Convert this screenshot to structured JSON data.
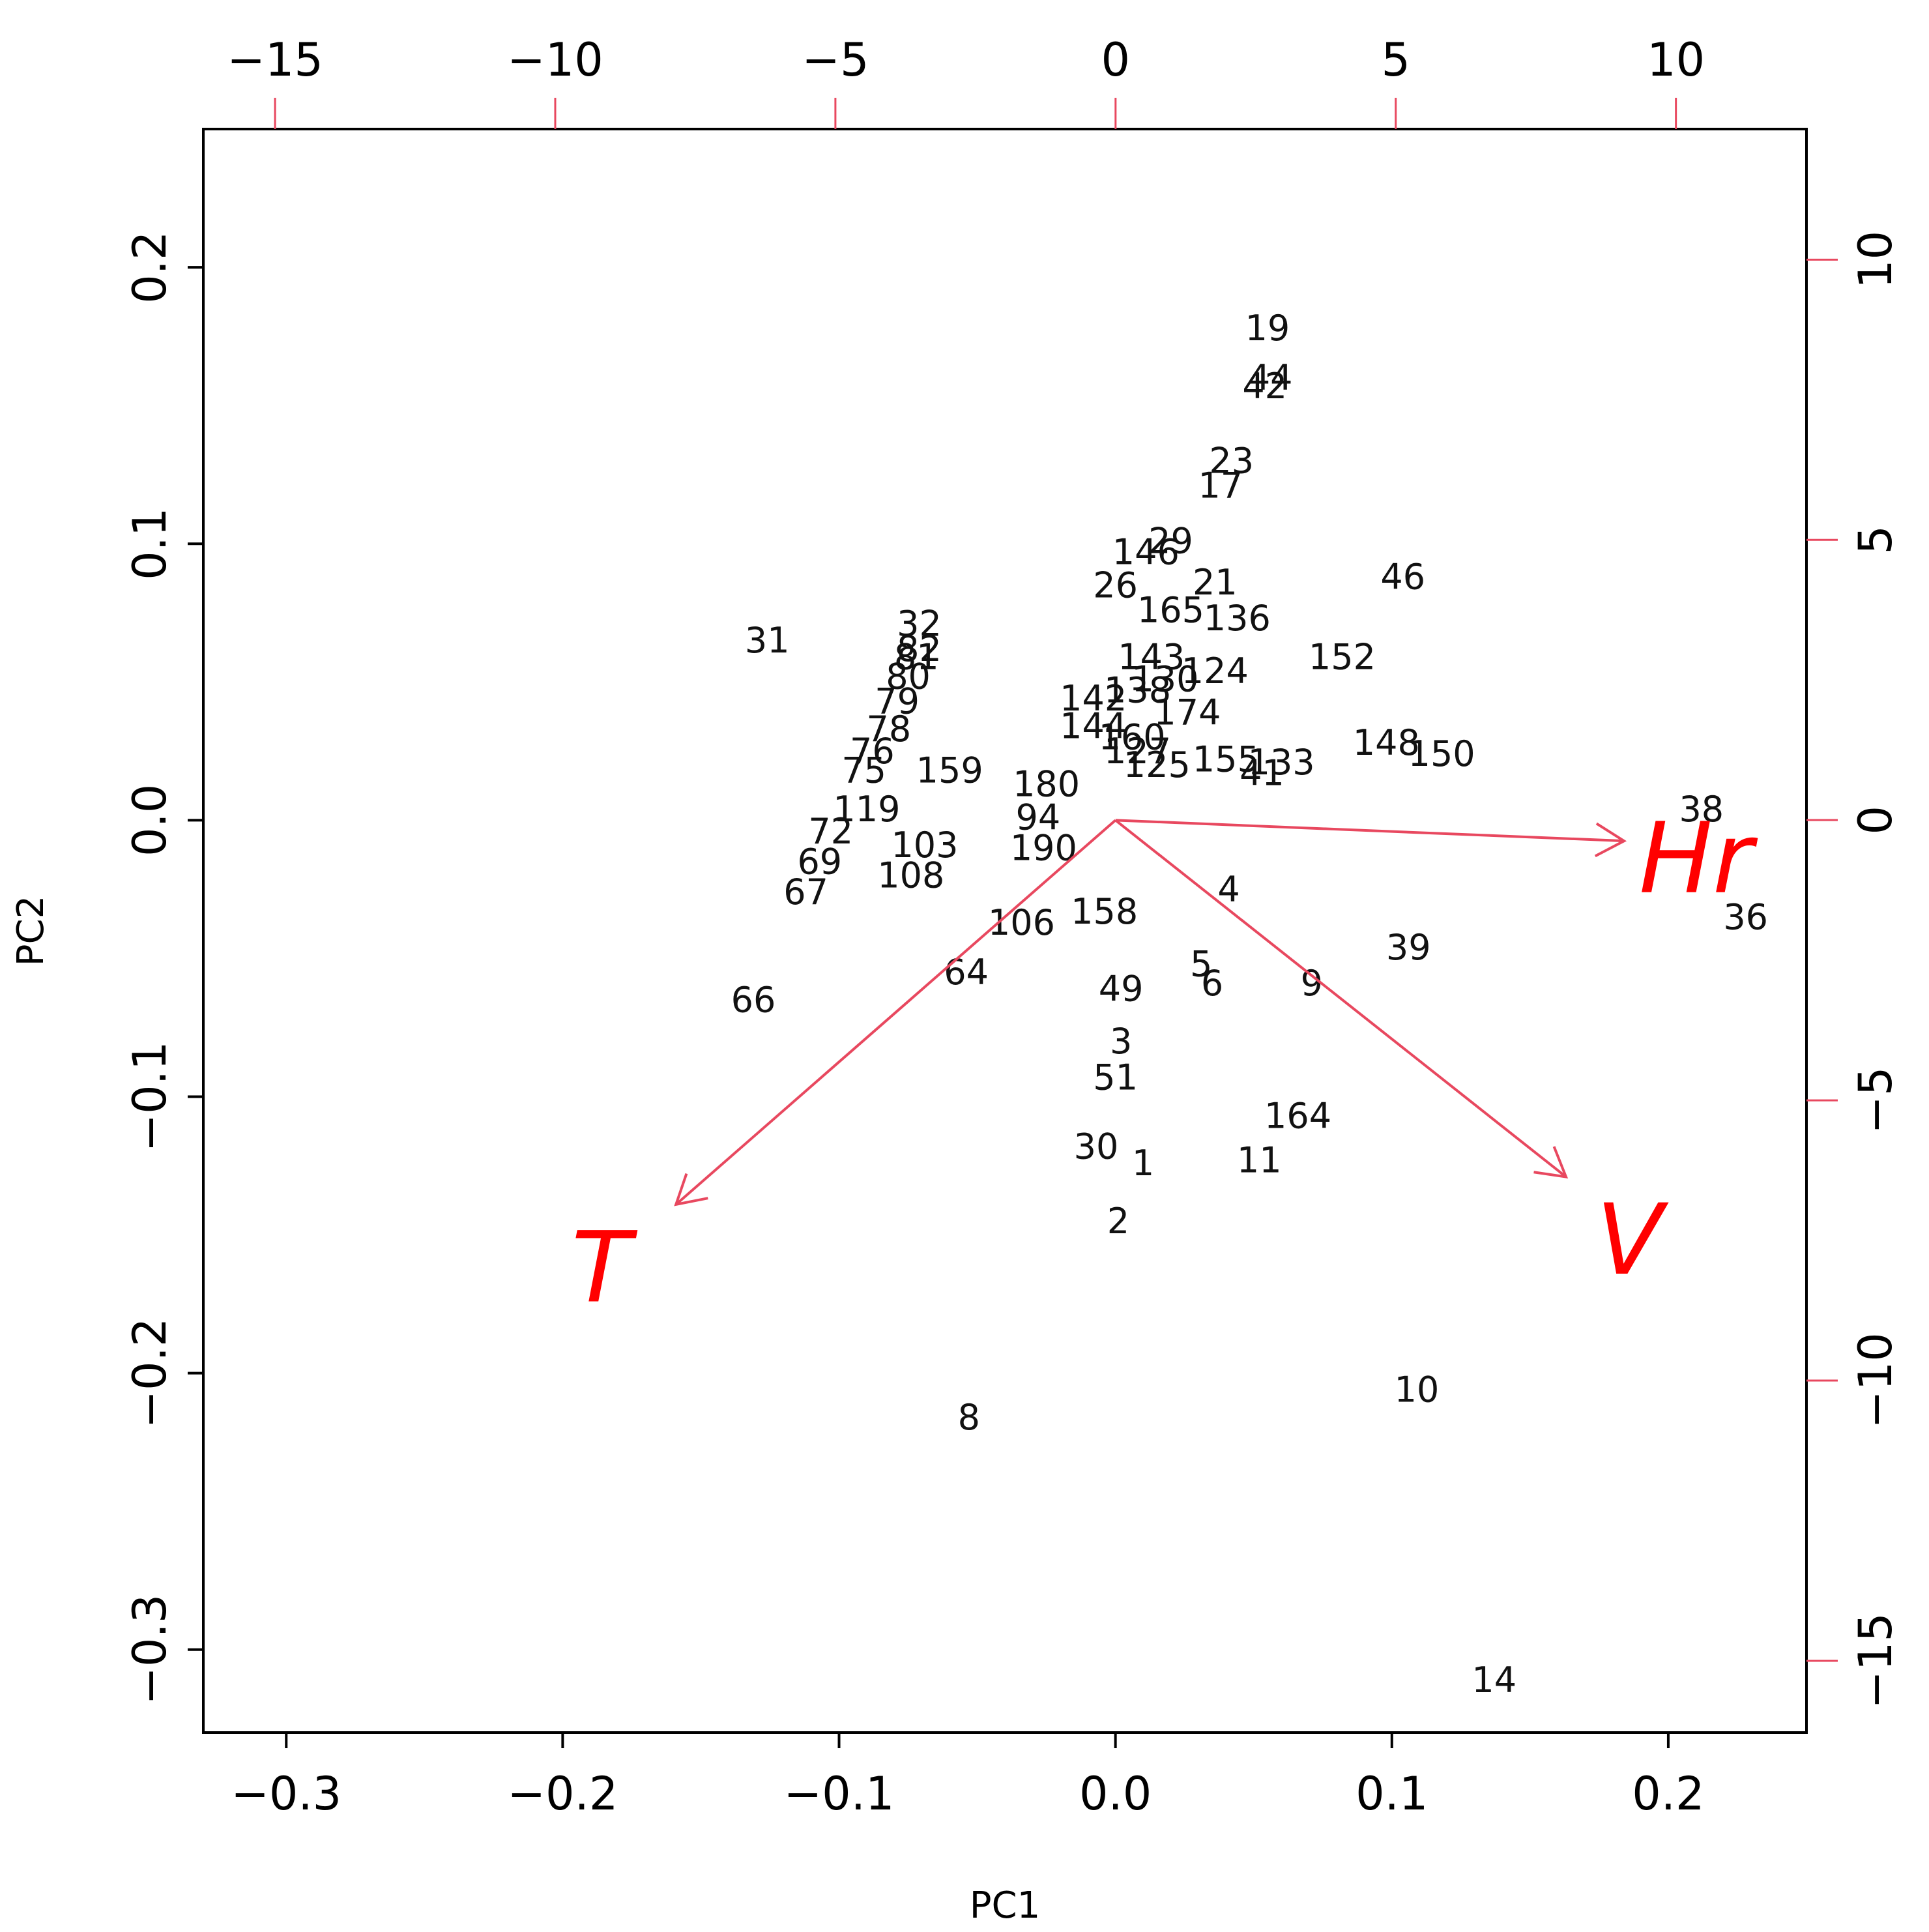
{
  "chart_data": {
    "type": "scatter",
    "subtype": "biplot",
    "title": "",
    "xlabel": "PC1",
    "ylabel": "PC2",
    "xlim": [
      -0.33,
      0.25
    ],
    "ylim": [
      -0.33,
      0.25
    ],
    "xticks": [
      -0.3,
      -0.2,
      -0.1,
      0.0,
      0.1,
      0.2
    ],
    "xtick_labels": [
      "−0.3",
      "−0.2",
      "−0.1",
      "0.0",
      "0.1",
      "0.2"
    ],
    "yticks": [
      -0.3,
      -0.2,
      -0.1,
      0.0,
      0.1,
      0.2
    ],
    "ytick_labels": [
      "−0.3",
      "−0.2",
      "−0.1",
      "0.0",
      "0.1",
      "0.2"
    ],
    "top_axis": {
      "lim": [
        -16.28,
        12.33
      ],
      "ticks": [
        -15,
        -10,
        -5,
        0,
        5,
        10
      ],
      "tick_labels": [
        "−15",
        "−10",
        "−5",
        "0",
        "5",
        "10"
      ]
    },
    "right_axis": {
      "lim": [
        -16.28,
        12.33
      ],
      "ticks": [
        -15,
        -10,
        -5,
        0,
        5,
        10
      ],
      "tick_labels": [
        "−15",
        "−10",
        "−5",
        "0",
        "5",
        "10"
      ]
    },
    "grid": false,
    "colors": {
      "points": "#000000",
      "arrows": "#ff0000",
      "secondary_axis": "#e8485f"
    },
    "points": [
      {
        "label": "19",
        "x": 0.055,
        "y": 0.178
      },
      {
        "label": "44",
        "x": 0.056,
        "y": 0.16
      },
      {
        "label": "42",
        "x": 0.054,
        "y": 0.157
      },
      {
        "label": "23",
        "x": 0.042,
        "y": 0.13
      },
      {
        "label": "17",
        "x": 0.038,
        "y": 0.121
      },
      {
        "label": "29",
        "x": 0.02,
        "y": 0.101
      },
      {
        "label": "146",
        "x": 0.011,
        "y": 0.097
      },
      {
        "label": "26",
        "x": 0.0,
        "y": 0.085
      },
      {
        "label": "21",
        "x": 0.036,
        "y": 0.086
      },
      {
        "label": "46",
        "x": 0.104,
        "y": 0.088
      },
      {
        "label": "165",
        "x": 0.02,
        "y": 0.076
      },
      {
        "label": "136",
        "x": 0.044,
        "y": 0.073
      },
      {
        "label": "152",
        "x": 0.082,
        "y": 0.059
      },
      {
        "label": "32",
        "x": -0.071,
        "y": 0.071
      },
      {
        "label": "31",
        "x": -0.126,
        "y": 0.065
      },
      {
        "label": "82",
        "x": -0.071,
        "y": 0.062
      },
      {
        "label": "81",
        "x": -0.072,
        "y": 0.059
      },
      {
        "label": "80",
        "x": -0.075,
        "y": 0.052
      },
      {
        "label": "143",
        "x": 0.013,
        "y": 0.059
      },
      {
        "label": "124",
        "x": 0.036,
        "y": 0.054
      },
      {
        "label": "130",
        "x": 0.018,
        "y": 0.051
      },
      {
        "label": "138",
        "x": 0.008,
        "y": 0.047
      },
      {
        "label": "142",
        "x": -0.008,
        "y": 0.044
      },
      {
        "label": "79",
        "x": -0.079,
        "y": 0.043
      },
      {
        "label": "174",
        "x": 0.026,
        "y": 0.039
      },
      {
        "label": "78",
        "x": -0.082,
        "y": 0.033
      },
      {
        "label": "144",
        "x": -0.008,
        "y": 0.034
      },
      {
        "label": "160",
        "x": 0.006,
        "y": 0.03
      },
      {
        "label": "148",
        "x": 0.098,
        "y": 0.028
      },
      {
        "label": "150",
        "x": 0.118,
        "y": 0.024
      },
      {
        "label": "76",
        "x": -0.088,
        "y": 0.025
      },
      {
        "label": "127",
        "x": 0.008,
        "y": 0.025
      },
      {
        "label": "155",
        "x": 0.04,
        "y": 0.022
      },
      {
        "label": "133",
        "x": 0.06,
        "y": 0.021
      },
      {
        "label": "41",
        "x": 0.053,
        "y": 0.017
      },
      {
        "label": "75",
        "x": -0.091,
        "y": 0.018
      },
      {
        "label": "159",
        "x": -0.06,
        "y": 0.018
      },
      {
        "label": "125",
        "x": 0.015,
        "y": 0.02
      },
      {
        "label": "180",
        "x": -0.025,
        "y": 0.013
      },
      {
        "label": "38",
        "x": 0.212,
        "y": 0.004
      },
      {
        "label": "119",
        "x": -0.09,
        "y": 0.004
      },
      {
        "label": "94",
        "x": -0.028,
        "y": 0.001
      },
      {
        "label": "72",
        "x": -0.103,
        "y": -0.004
      },
      {
        "label": "103",
        "x": -0.069,
        "y": -0.009
      },
      {
        "label": "190",
        "x": -0.026,
        "y": -0.01
      },
      {
        "label": "69",
        "x": -0.107,
        "y": -0.015
      },
      {
        "label": "67",
        "x": -0.112,
        "y": -0.026
      },
      {
        "label": "108",
        "x": -0.074,
        "y": -0.02
      },
      {
        "label": "4",
        "x": 0.041,
        "y": -0.025
      },
      {
        "label": "158",
        "x": -0.004,
        "y": -0.033
      },
      {
        "label": "106",
        "x": -0.034,
        "y": -0.037
      },
      {
        "label": "36",
        "x": 0.228,
        "y": -0.035
      },
      {
        "label": "39",
        "x": 0.106,
        "y": -0.046
      },
      {
        "label": "66",
        "x": -0.131,
        "y": -0.065
      },
      {
        "label": "5",
        "x": 0.031,
        "y": -0.052
      },
      {
        "label": "64",
        "x": -0.054,
        "y": -0.055
      },
      {
        "label": "6",
        "x": 0.035,
        "y": -0.059
      },
      {
        "label": "9",
        "x": 0.071,
        "y": -0.059
      },
      {
        "label": "49",
        "x": 0.002,
        "y": -0.061
      },
      {
        "label": "3",
        "x": 0.002,
        "y": -0.08
      },
      {
        "label": "51",
        "x": 0.0,
        "y": -0.093
      },
      {
        "label": "164",
        "x": 0.066,
        "y": -0.107
      },
      {
        "label": "30",
        "x": -0.007,
        "y": -0.118
      },
      {
        "label": "1",
        "x": 0.01,
        "y": -0.124
      },
      {
        "label": "11",
        "x": 0.052,
        "y": -0.123
      },
      {
        "label": "2",
        "x": 0.001,
        "y": -0.145
      },
      {
        "label": "10",
        "x": 0.109,
        "y": -0.206
      },
      {
        "label": "8",
        "x": -0.053,
        "y": -0.216
      },
      {
        "label": "14",
        "x": 0.137,
        "y": -0.311
      }
    ],
    "arrows": [
      {
        "label": "Hr",
        "x": 0.184,
        "y": -0.0075,
        "label_x": 0.21,
        "label_y": -0.014
      },
      {
        "label": "T",
        "x": -0.159,
        "y": -0.139,
        "label_x": -0.186,
        "label_y": -0.162
      },
      {
        "label": "V",
        "x": 0.163,
        "y": -0.129,
        "label_x": 0.186,
        "label_y": -0.152
      }
    ]
  }
}
